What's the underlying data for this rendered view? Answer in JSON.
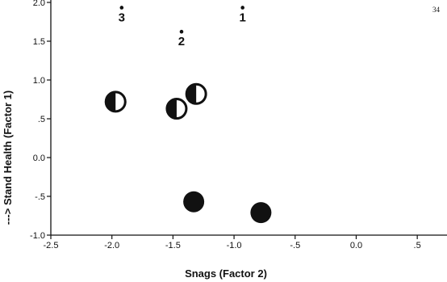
{
  "page_number": "34",
  "chart_data": {
    "type": "scatter",
    "xlabel": "Snags (Factor 2)",
    "ylabel": "---> Stand Health (Factor 1)",
    "xlim": [
      -2.5,
      0.75
    ],
    "ylim": [
      -1.0,
      2.0
    ],
    "x_ticks": [
      -2.5,
      -2.0,
      -1.5,
      -1.0,
      -0.5,
      0.0,
      0.5
    ],
    "x_tick_labels": [
      "-2.5",
      "-2.0",
      "-1.5",
      "-1.0",
      "-.5",
      "0.0",
      ".5"
    ],
    "y_ticks": [
      -1.0,
      -0.5,
      0.0,
      0.5,
      1.0,
      1.5,
      2.0
    ],
    "y_tick_labels": [
      "-1.0",
      "-.5",
      "0.0",
      ".5",
      "1.0",
      "1.5",
      "2.0"
    ],
    "grid": false,
    "points": [
      {
        "x": -1.92,
        "y": 1.86,
        "marker": "small-dot",
        "label": "3"
      },
      {
        "x": -1.43,
        "y": 1.55,
        "marker": "small-dot",
        "label": "2"
      },
      {
        "x": -0.93,
        "y": 1.86,
        "marker": "small-dot",
        "label": "1"
      },
      {
        "x": -1.97,
        "y": 0.72,
        "marker": "half-filled-circle"
      },
      {
        "x": -1.47,
        "y": 0.63,
        "marker": "half-filled-circle"
      },
      {
        "x": -1.31,
        "y": 0.82,
        "marker": "half-filled-circle"
      },
      {
        "x": -1.33,
        "y": -0.57,
        "marker": "filled-circle"
      },
      {
        "x": -0.78,
        "y": -0.71,
        "marker": "filled-circle"
      }
    ]
  }
}
